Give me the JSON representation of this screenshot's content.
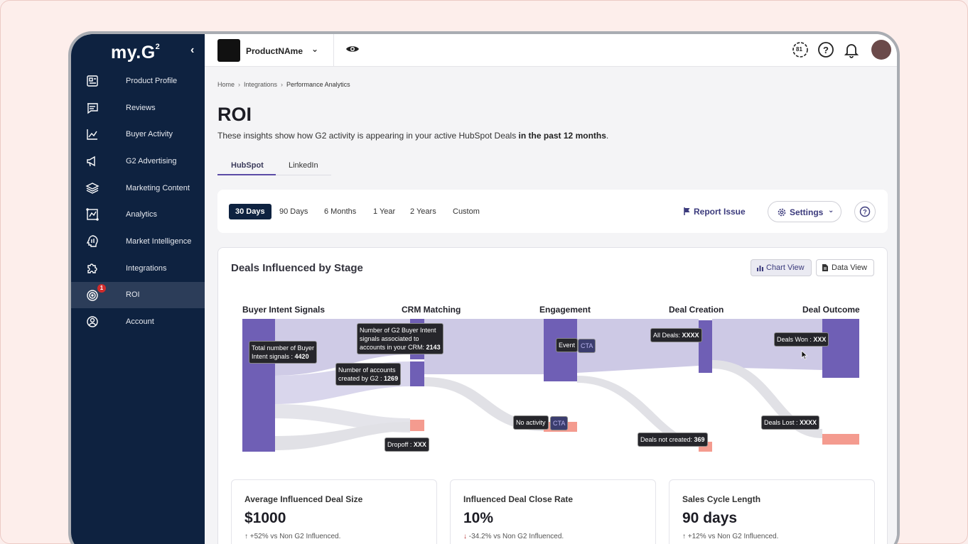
{
  "sidebar": {
    "logo": "my.G",
    "logo_sup": "2",
    "collapse_icon": "chevron-left-icon",
    "items": [
      {
        "label": "Product Profile",
        "icon": "product-profile-icon"
      },
      {
        "label": "Reviews",
        "icon": "reviews-icon"
      },
      {
        "label": "Buyer Activity",
        "icon": "buyer-activity-icon"
      },
      {
        "label": "G2 Advertising",
        "icon": "megaphone-icon"
      },
      {
        "label": "Marketing Content",
        "icon": "layers-icon"
      },
      {
        "label": "Analytics",
        "icon": "analytics-icon"
      },
      {
        "label": "Market Intelligence",
        "icon": "market-intelligence-icon"
      },
      {
        "label": "Integrations",
        "icon": "puzzle-icon"
      },
      {
        "label": "ROI",
        "icon": "target-icon",
        "active": true,
        "badge": "1"
      },
      {
        "label": "Account",
        "icon": "account-icon"
      }
    ]
  },
  "topbar": {
    "product_name": "ProductNAme",
    "notification_count": "81"
  },
  "breadcrumb": [
    "Home",
    "Integrations",
    "Performance Analytics"
  ],
  "page": {
    "title": "ROI",
    "subtitle_start": "These insights show how G2 activity is appearing in your active HubSpot Deals ",
    "subtitle_bold": "in the past 12 months",
    "subtitle_end": "."
  },
  "tabs": [
    {
      "label": "HubSpot",
      "active": true
    },
    {
      "label": "LinkedIn",
      "active": false
    }
  ],
  "filters": {
    "ranges": [
      "30 Days",
      "90 Days",
      "6 Months",
      "1 Year",
      "2 Years",
      "Custom"
    ],
    "active": "30 Days",
    "report_issue": "Report Issue",
    "settings": "Settings"
  },
  "deals_card": {
    "title": "Deals Influenced by Stage",
    "chart_view": "Chart View",
    "data_view": "Data View",
    "stages": [
      "Buyer Intent Signals",
      "CRM Matching",
      "Engagement",
      "Deal Creation",
      "Deal Outcome"
    ],
    "tooltips": {
      "total_prefix": "Total number of Buyer",
      "total_line2": "Intent signals : ",
      "total_value": "4420",
      "accounts_line1": "Number of accounts",
      "accounts_line2": "created by G2 : ",
      "accounts_value": "1269",
      "crm_line1": "Number of G2 Buyer Intent",
      "crm_line2": "signals associated to",
      "crm_line3": "accounts in your CRM: ",
      "crm_value": "2143",
      "event": "Event",
      "cta": "CTA",
      "all_deals": "All Deals: ",
      "all_deals_value": "XXXX",
      "deals_won": "Deals Won : ",
      "deals_won_value": "XXX",
      "dropoff": "Dropoff : ",
      "dropoff_value": "XXX",
      "no_activity": "No activity",
      "no_activity_cta": "CTA",
      "deals_not_created": "Deals not created: ",
      "deals_not_created_value": "369",
      "deals_lost": "Deals Lost : ",
      "deals_lost_value": "XXXX"
    },
    "colors": {
      "node": "#6f5fb5",
      "flow": "#c9c4e4",
      "loss": "#f49b8f",
      "drop_flow": "#dcdce2"
    }
  },
  "metrics": [
    {
      "label": "Average Influenced Deal Size",
      "value": "$1000",
      "arrow": "↑",
      "delta": "+52%",
      "suffix": " vs Non G2 Influenced."
    },
    {
      "label": "Influenced Deal Close Rate",
      "value": "10%",
      "arrow": "↓",
      "delta": "-34.2%",
      "suffix": " vs Non G2 Influenced."
    },
    {
      "label": "Sales Cycle Length",
      "value": "90 days",
      "arrow": "↑",
      "delta": "+12%",
      "suffix": " vs Non G2 Influenced."
    }
  ]
}
